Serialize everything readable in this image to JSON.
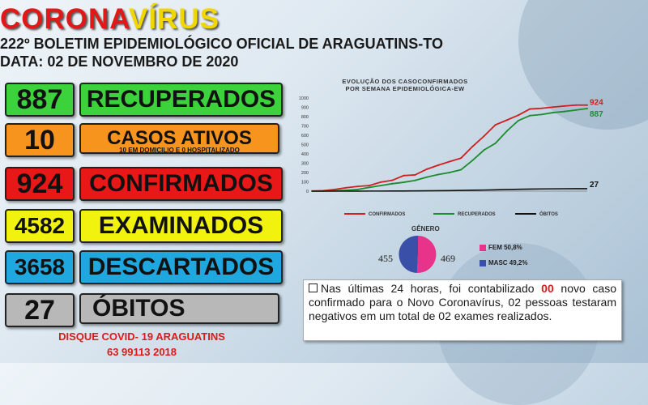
{
  "header": {
    "title_red": "CORONA",
    "title_yellow": "VÍRUS",
    "line1": "222º BOLETIM EPIDEMIOLÓGICO OFICIAL DE ARAGUATINS-TO",
    "line2": "DATA: 02  DE NOVEMBRO DE 2020"
  },
  "stats": [
    {
      "value": "887",
      "label": "RECUPERADOS",
      "color": "#3cd23c"
    },
    {
      "value": "10",
      "label": "CASOS ATIVOS",
      "note": "10 EM DOMICILIO E 0 HOSPITALIZADO",
      "color": "#f7941d"
    },
    {
      "value": "924",
      "label": "CONFIRMADOS",
      "color": "#e81818"
    },
    {
      "value": "4582",
      "label": "EXAMINADOS",
      "color": "#f2f20f"
    },
    {
      "value": "3658",
      "label": "DESCARTADOS",
      "color": "#1fa8e0"
    },
    {
      "value": "27",
      "label": "ÓBITOS",
      "color": "#b8b8b8"
    }
  ],
  "footer": {
    "line1": "DISQUE COVID- 19 ARAGUATINS",
    "line2": "63 99113 2018"
  },
  "chart_data": {
    "type": "line",
    "title": "EVOLUÇÃO DOS CASOCONFIRMADOS\nPOR SEMANA EPIDEMIOLÓGICA-EW",
    "y_ticks": [
      "0",
      "100",
      "200",
      "300",
      "400",
      "500",
      "600",
      "700",
      "800",
      "900",
      "1000"
    ],
    "ylim": [
      0,
      1000
    ],
    "series": [
      {
        "name": "CONFIRMADOS",
        "color": "#d01f1f",
        "values": [
          2,
          5,
          18,
          37,
          51,
          60,
          97,
          116,
          167,
          175,
          235,
          278,
          317,
          355,
          479,
          590,
          712,
          763,
          816,
          882,
          889,
          902,
          914,
          924,
          924
        ]
      },
      {
        "name": "RECUPERADOS",
        "color": "#1e8c2e",
        "values": [
          0,
          1,
          3,
          10,
          18,
          40,
          60,
          80,
          95,
          115,
          150,
          178,
          200,
          230,
          330,
          441,
          514,
          646,
          758,
          811,
          823,
          843,
          855,
          871,
          887
        ]
      },
      {
        "name": "ÓBITOS",
        "color": "#111111",
        "values": [
          0,
          0,
          0,
          0,
          0,
          1,
          1,
          2,
          2,
          3,
          4,
          5,
          6,
          8,
          10,
          12,
          15,
          18,
          20,
          22,
          24,
          25,
          26,
          27,
          27
        ]
      }
    ],
    "end_labels": {
      "confirmados": "924",
      "recuperados": "887",
      "obitos": "27"
    }
  },
  "pie": {
    "title": "GÊNERO",
    "left_value": "455",
    "right_value": "469",
    "fem_label": "FEM  50,8%",
    "masc_label": "MASC  49,2%",
    "fem_color": "#e8338a",
    "masc_color": "#3a4fa8"
  },
  "info": {
    "part1": "Nas últimas 24 horas, foi contabilizado ",
    "highlight": "00",
    "part2": " novo caso confirmado para o Novo Coronavírus, 02 pessoas testaram negativos em um total de 02 exames realizados."
  }
}
